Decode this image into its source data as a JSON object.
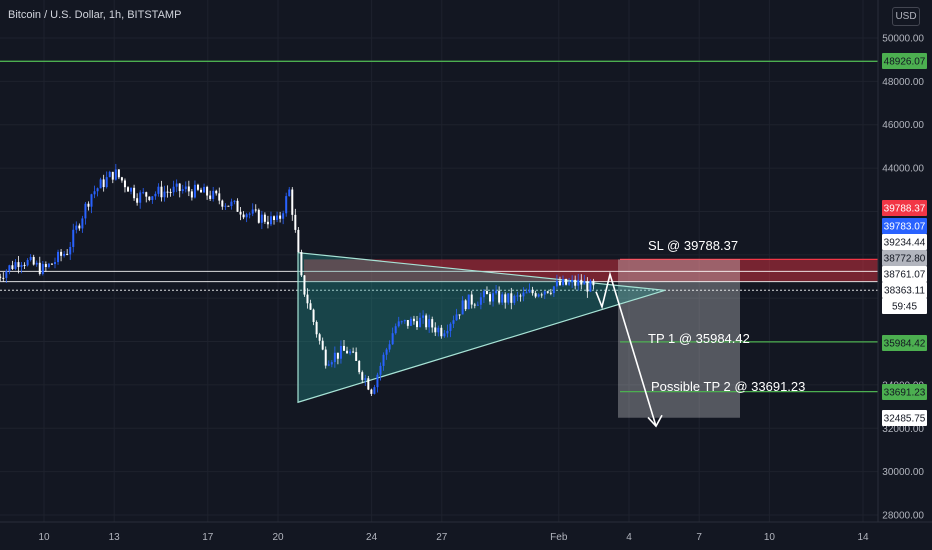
{
  "header": {
    "symbol_title": "Bitcoin / U.S. Dollar, 1h, BITSTAMP",
    "currency_button": "USD"
  },
  "price_axis": {
    "ticks": [
      "50000.00",
      "48000.00",
      "46000.00",
      "44000.00",
      "34000.00",
      "32000.00",
      "30000.00",
      "28000.00"
    ],
    "tags": [
      {
        "label": "48926.07",
        "bg": "#4caf50",
        "fg": "#131722"
      },
      {
        "label": "39788.37",
        "bg": "#f23645",
        "fg": "#ffffff"
      },
      {
        "label": "39783.07",
        "bg": "#2962ff",
        "fg": "#ffffff"
      },
      {
        "label": "39234.44",
        "bg": "#ffffff",
        "fg": "#131722"
      },
      {
        "label": "38772.80",
        "bg": "#b2b5be",
        "fg": "#131722"
      },
      {
        "label": "38761.07",
        "bg": "#ffffff",
        "fg": "#131722"
      },
      {
        "label": "38363.11",
        "bg": "#ffffff",
        "fg": "#131722"
      },
      {
        "label": "59:45",
        "bg": "#ffffff",
        "fg": "#131722"
      },
      {
        "label": "35984.42",
        "bg": "#4caf50",
        "fg": "#131722"
      },
      {
        "label": "33691.23",
        "bg": "#4caf50",
        "fg": "#131722"
      },
      {
        "label": "32485.75",
        "bg": "#ffffff",
        "fg": "#131722"
      }
    ]
  },
  "time_axis": {
    "ticks": [
      "10",
      "13",
      "17",
      "20",
      "24",
      "27",
      "Feb",
      "4",
      "7",
      "10",
      "14"
    ]
  },
  "annotations": {
    "sl": "SL @ 39788.37",
    "tp1": "TP 1 @ 35984.42",
    "tp2": "Possible TP 2 @ 33691.23"
  },
  "colors": {
    "background": "#131722",
    "up": "#2962ff",
    "down": "#ffffff",
    "green_line": "#4caf50",
    "stop_zone": "#f23645",
    "triangle": "#26a69a"
  },
  "chart_data": {
    "type": "line",
    "title": "Bitcoin / U.S. Dollar, 1h, BITSTAMP",
    "y_scale": "linear",
    "ylim": [
      27500,
      51000
    ],
    "x": [
      "Jan 10",
      "Jan 13",
      "Jan 17",
      "Jan 20",
      "Jan 24",
      "Jan 27",
      "Feb 1",
      "Feb 4",
      "Feb 7",
      "Feb 10",
      "Feb 14"
    ],
    "series": [
      {
        "points": [
          [
            "Jan 8",
            39000
          ],
          [
            "Jan 9",
            39800
          ],
          [
            "Jan 10",
            39300
          ],
          [
            "Jan 11",
            40200
          ],
          [
            "Jan 12",
            42800
          ],
          [
            "Jan 13",
            43800
          ],
          [
            "Jan 14",
            42700
          ],
          [
            "Jan 15",
            42900
          ],
          [
            "Jan 16",
            43000
          ],
          [
            "Jan 17",
            42800
          ],
          [
            "Jan 18",
            42300
          ],
          [
            "Jan 19",
            41800
          ],
          [
            "Jan 20",
            41500
          ],
          [
            "Jan 20 12h",
            43000
          ],
          [
            "Jan 21",
            38800
          ],
          [
            "Jan 22",
            35200
          ],
          [
            "Jan 23",
            35600
          ],
          [
            "Jan 24",
            33800
          ],
          [
            "Jan 25",
            36700
          ],
          [
            "Jan 26",
            37000
          ],
          [
            "Jan 27",
            36500
          ],
          [
            "Jan 28",
            37800
          ],
          [
            "Jan 29",
            38100
          ],
          [
            "Jan 30",
            37900
          ],
          [
            "Jan 31",
            38300
          ],
          [
            "Feb 1",
            38600
          ],
          [
            "Feb 2",
            38700
          ],
          [
            "Feb 2 12h",
            38400
          ]
        ]
      }
    ],
    "levels": [
      {
        "label": "48926.07",
        "value": 48926.07
      },
      {
        "label": "SL @ 39788.37",
        "value": 39788.37
      },
      {
        "label": "TP 1 @ 35984.42",
        "value": 35984.42
      },
      {
        "label": "Possible TP 2 @ 33691.23",
        "value": 33691.23
      }
    ],
    "pattern": "symmetrical triangle",
    "projection": "price moves up to the triangle apex, then falls toward 33691.23"
  }
}
